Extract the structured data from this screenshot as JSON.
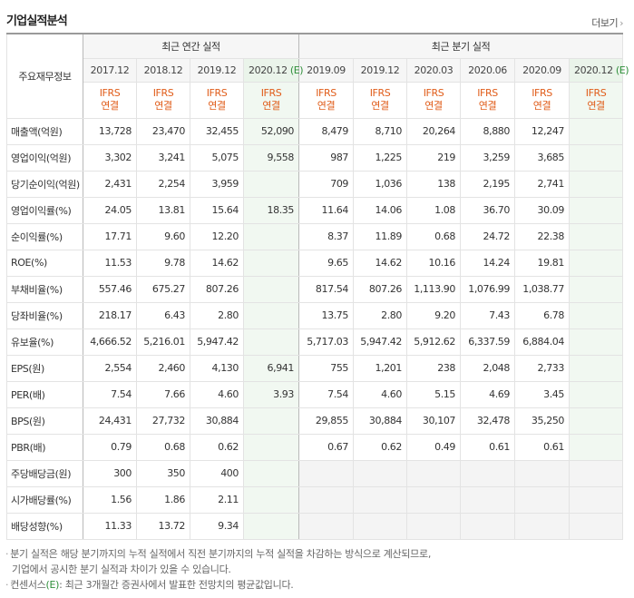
{
  "title": "기업실적분석",
  "more_label": "더보기",
  "row_header": "주요재무정보",
  "group_annual": "최근 연간 실적",
  "group_quarter": "최근 분기 실적",
  "estimate_mark": "(E)",
  "annual_periods": [
    "2017.12",
    "2018.12",
    "2019.12",
    "2020.12"
  ],
  "quarter_periods": [
    "2019.09",
    "2019.12",
    "2020.03",
    "2020.06",
    "2020.09",
    "2020.12"
  ],
  "ifrs_line1": "IFRS",
  "ifrs_line2": "연결",
  "rows": [
    {
      "label": "매출액(억원)",
      "annual": [
        "13,728",
        "23,470",
        "32,455",
        "52,090"
      ],
      "quarter": [
        "8,479",
        "8,710",
        "20,264",
        "8,880",
        "12,247",
        ""
      ]
    },
    {
      "label": "영업이익(억원)",
      "annual": [
        "3,302",
        "3,241",
        "5,075",
        "9,558"
      ],
      "quarter": [
        "987",
        "1,225",
        "219",
        "3,259",
        "3,685",
        ""
      ]
    },
    {
      "label": "당기순이익(억원)",
      "annual": [
        "2,431",
        "2,254",
        "3,959",
        ""
      ],
      "quarter": [
        "709",
        "1,036",
        "138",
        "2,195",
        "2,741",
        ""
      ]
    },
    {
      "label": "영업이익률(%)",
      "annual": [
        "24.05",
        "13.81",
        "15.64",
        "18.35"
      ],
      "quarter": [
        "11.64",
        "14.06",
        "1.08",
        "36.70",
        "30.09",
        ""
      ]
    },
    {
      "label": "순이익률(%)",
      "annual": [
        "17.71",
        "9.60",
        "12.20",
        ""
      ],
      "quarter": [
        "8.37",
        "11.89",
        "0.68",
        "24.72",
        "22.38",
        ""
      ]
    },
    {
      "label": "ROE(%)",
      "annual": [
        "11.53",
        "9.78",
        "14.62",
        ""
      ],
      "quarter": [
        "9.65",
        "14.62",
        "10.16",
        "14.24",
        "19.81",
        ""
      ]
    },
    {
      "label": "부채비율(%)",
      "annual": [
        "557.46",
        "675.27",
        "807.26",
        ""
      ],
      "quarter": [
        "817.54",
        "807.26",
        "1,113.90",
        "1,076.99",
        "1,038.77",
        ""
      ]
    },
    {
      "label": "당좌비율(%)",
      "annual": [
        "218.17",
        "6.43",
        "2.80",
        ""
      ],
      "quarter": [
        "13.75",
        "2.80",
        "9.20",
        "7.43",
        "6.78",
        ""
      ]
    },
    {
      "label": "유보율(%)",
      "annual": [
        "4,666.52",
        "5,216.01",
        "5,947.42",
        ""
      ],
      "quarter": [
        "5,717.03",
        "5,947.42",
        "5,912.62",
        "6,337.59",
        "6,884.04",
        ""
      ]
    },
    {
      "label": "EPS(원)",
      "annual": [
        "2,554",
        "2,460",
        "4,130",
        "6,941"
      ],
      "quarter": [
        "755",
        "1,201",
        "238",
        "2,048",
        "2,733",
        ""
      ]
    },
    {
      "label": "PER(배)",
      "annual": [
        "7.54",
        "7.66",
        "4.60",
        "3.93"
      ],
      "quarter": [
        "7.54",
        "4.60",
        "5.15",
        "4.69",
        "3.45",
        ""
      ]
    },
    {
      "label": "BPS(원)",
      "annual": [
        "24,431",
        "27,732",
        "30,884",
        ""
      ],
      "quarter": [
        "29,855",
        "30,884",
        "30,107",
        "32,478",
        "35,250",
        ""
      ]
    },
    {
      "label": "PBR(배)",
      "annual": [
        "0.79",
        "0.68",
        "0.62",
        ""
      ],
      "quarter": [
        "0.67",
        "0.62",
        "0.49",
        "0.61",
        "0.61",
        ""
      ]
    },
    {
      "label": "주당배당금(원)",
      "annual": [
        "300",
        "350",
        "400",
        ""
      ],
      "quarter": null
    },
    {
      "label": "시가배당률(%)",
      "annual": [
        "1.56",
        "1.86",
        "2.11",
        ""
      ],
      "quarter": null
    },
    {
      "label": "배당성향(%)",
      "annual": [
        "11.33",
        "13.72",
        "9.34",
        ""
      ],
      "quarter": null
    }
  ],
  "notes": [
    "분기 실적은 해당 분기까지의 누적 실적에서 직전 분기까지의 누적 실적을 차감하는 방식으로 계산되므로,",
    "기업에서 공시한 분기 실적과 차이가 있을 수 있습니다.",
    "컨센서스",
    ": 최근 3개월간 증권사에서 발표한 전망치의 평균값입니다."
  ]
}
